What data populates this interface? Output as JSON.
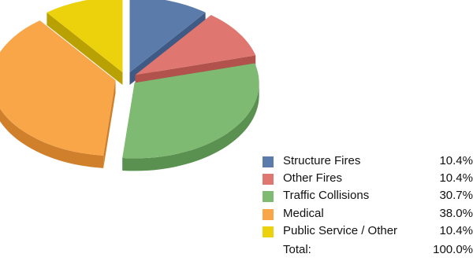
{
  "chart_data": {
    "type": "pie",
    "title": "",
    "style": "3d-exploded",
    "slices": [
      {
        "label": "Structure Fires",
        "value": 10.4,
        "display": "10.4%",
        "color": "#5b7bab",
        "side_color": "#3e5a85"
      },
      {
        "label": "Other Fires",
        "value": 10.4,
        "display": "10.4%",
        "color": "#e07670",
        "side_color": "#b2524d"
      },
      {
        "label": "Traffic Collisions",
        "value": 30.7,
        "display": "30.7%",
        "color": "#7fba72",
        "side_color": "#5a9150"
      },
      {
        "label": "Medical",
        "value": 38.0,
        "display": "38.0%",
        "color": "#f9a649",
        "side_color": "#d0802a"
      },
      {
        "label": "Public Service / Other",
        "value": 10.4,
        "display": "10.4%",
        "color": "#ecd20d",
        "side_color": "#b9a104"
      }
    ],
    "total": {
      "label": "Total:",
      "display": "100.0%"
    },
    "legend_position": "bottom-right"
  }
}
